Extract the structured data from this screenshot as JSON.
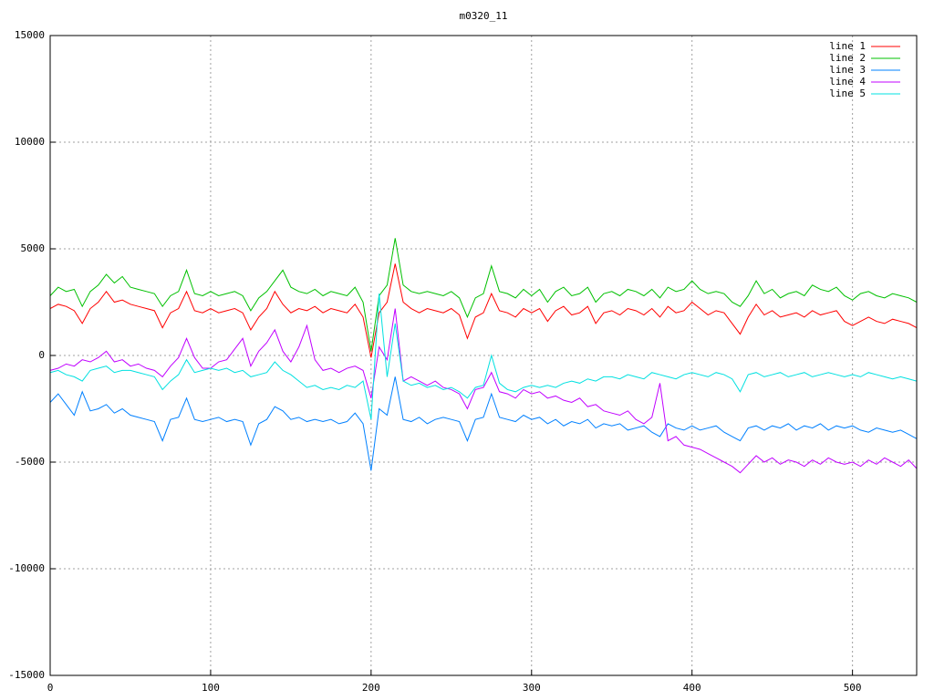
{
  "chart_data": {
    "type": "line",
    "title": "m0320_11",
    "x": [
      0,
      5,
      10,
      15,
      20,
      25,
      30,
      35,
      40,
      45,
      50,
      55,
      60,
      65,
      70,
      75,
      80,
      85,
      90,
      95,
      100,
      105,
      110,
      115,
      120,
      125,
      130,
      135,
      140,
      145,
      150,
      155,
      160,
      165,
      170,
      175,
      180,
      185,
      190,
      195,
      200,
      205,
      210,
      215,
      220,
      225,
      230,
      235,
      240,
      245,
      250,
      255,
      260,
      265,
      270,
      275,
      280,
      285,
      290,
      295,
      300,
      305,
      310,
      315,
      320,
      325,
      330,
      335,
      340,
      345,
      350,
      355,
      360,
      365,
      370,
      375,
      380,
      385,
      390,
      395,
      400,
      405,
      410,
      415,
      420,
      425,
      430,
      435,
      440,
      445,
      450,
      455,
      460,
      465,
      470,
      475,
      480,
      485,
      490,
      495,
      500,
      505,
      510,
      515,
      520,
      525,
      530,
      535,
      540
    ],
    "series": [
      {
        "name": "line 1",
        "color": "#ff0000",
        "values": [
          2200,
          2400,
          2300,
          2100,
          1500,
          2200,
          2500,
          3000,
          2500,
          2600,
          2400,
          2300,
          2200,
          2100,
          1300,
          2000,
          2200,
          3000,
          2100,
          2000,
          2200,
          2000,
          2100,
          2200,
          2000,
          1200,
          1800,
          2200,
          3000,
          2400,
          2000,
          2200,
          2100,
          2300,
          2000,
          2200,
          2100,
          2000,
          2400,
          1800,
          -100,
          2000,
          2500,
          4300,
          2500,
          2200,
          2000,
          2200,
          2100,
          2000,
          2200,
          1900,
          800,
          1800,
          2000,
          2900,
          2100,
          2000,
          1800,
          2200,
          2000,
          2200,
          1600,
          2100,
          2300,
          1900,
          2000,
          2300,
          1500,
          2000,
          2100,
          1900,
          2200,
          2100,
          1900,
          2200,
          1800,
          2300,
          2000,
          2100,
          2500,
          2200,
          1900,
          2100,
          2000,
          1500,
          1000,
          1800,
          2400,
          1900,
          2100,
          1800,
          1900,
          2000,
          1800,
          2100,
          1900,
          2000,
          2100,
          1600,
          1400,
          1600,
          1800,
          1600,
          1500,
          1700,
          1600,
          1500,
          1300
        ]
      },
      {
        "name": "line 2",
        "color": "#00c000",
        "values": [
          2800,
          3200,
          3000,
          3100,
          2300,
          3000,
          3300,
          3800,
          3400,
          3700,
          3200,
          3100,
          3000,
          2900,
          2300,
          2800,
          3000,
          4000,
          2900,
          2800,
          3000,
          2800,
          2900,
          3000,
          2800,
          2100,
          2700,
          3000,
          3500,
          4000,
          3200,
          3000,
          2900,
          3100,
          2800,
          3000,
          2900,
          2800,
          3200,
          2500,
          200,
          2800,
          3300,
          5500,
          3300,
          3000,
          2900,
          3000,
          2900,
          2800,
          3000,
          2700,
          1800,
          2700,
          2900,
          4200,
          3000,
          2900,
          2700,
          3100,
          2800,
          3100,
          2500,
          3000,
          3200,
          2800,
          2900,
          3200,
          2500,
          2900,
          3000,
          2800,
          3100,
          3000,
          2800,
          3100,
          2700,
          3200,
          3000,
          3100,
          3500,
          3100,
          2900,
          3000,
          2900,
          2500,
          2300,
          2800,
          3500,
          2900,
          3100,
          2700,
          2900,
          3000,
          2800,
          3300,
          3100,
          3000,
          3200,
          2800,
          2600,
          2900,
          3000,
          2800,
          2700,
          2900,
          2800,
          2700,
          2500
        ]
      },
      {
        "name": "line 3",
        "color": "#0080ff",
        "values": [
          -2200,
          -1800,
          -2300,
          -2800,
          -1700,
          -2600,
          -2500,
          -2300,
          -2700,
          -2500,
          -2800,
          -2900,
          -3000,
          -3100,
          -4000,
          -3000,
          -2900,
          -2000,
          -3000,
          -3100,
          -3000,
          -2900,
          -3100,
          -3000,
          -3100,
          -4200,
          -3200,
          -3000,
          -2400,
          -2600,
          -3000,
          -2900,
          -3100,
          -3000,
          -3100,
          -3000,
          -3200,
          -3100,
          -2700,
          -3200,
          -5400,
          -2500,
          -2800,
          -1000,
          -3000,
          -3100,
          -2900,
          -3200,
          -3000,
          -2900,
          -3000,
          -3100,
          -4000,
          -3000,
          -2900,
          -1800,
          -2900,
          -3000,
          -3100,
          -2800,
          -3000,
          -2900,
          -3200,
          -3000,
          -3300,
          -3100,
          -3200,
          -3000,
          -3400,
          -3200,
          -3300,
          -3200,
          -3500,
          -3400,
          -3300,
          -3600,
          -3800,
          -3200,
          -3400,
          -3500,
          -3300,
          -3500,
          -3400,
          -3300,
          -3600,
          -3800,
          -4000,
          -3400,
          -3300,
          -3500,
          -3300,
          -3400,
          -3200,
          -3500,
          -3300,
          -3400,
          -3200,
          -3500,
          -3300,
          -3400,
          -3300,
          -3500,
          -3600,
          -3400,
          -3500,
          -3600,
          -3500,
          -3700,
          -3900
        ]
      },
      {
        "name": "line 4",
        "color": "#c000ff",
        "values": [
          -700,
          -600,
          -400,
          -500,
          -200,
          -300,
          -100,
          200,
          -300,
          -200,
          -500,
          -400,
          -600,
          -700,
          -1000,
          -500,
          -100,
          800,
          -100,
          -600,
          -600,
          -300,
          -200,
          300,
          800,
          -500,
          200,
          600,
          1200,
          200,
          -300,
          400,
          1400,
          -200,
          -700,
          -600,
          -800,
          -600,
          -500,
          -700,
          -2000,
          400,
          -200,
          2200,
          -1200,
          -1000,
          -1200,
          -1400,
          -1200,
          -1500,
          -1600,
          -1800,
          -2500,
          -1600,
          -1500,
          -800,
          -1700,
          -1800,
          -2000,
          -1600,
          -1800,
          -1700,
          -2000,
          -1900,
          -2100,
          -2200,
          -2000,
          -2400,
          -2300,
          -2600,
          -2700,
          -2800,
          -2600,
          -3000,
          -3200,
          -2900,
          -1300,
          -4000,
          -3800,
          -4200,
          -4300,
          -4400,
          -4600,
          -4800,
          -5000,
          -5200,
          -5500,
          -5100,
          -4700,
          -5000,
          -4800,
          -5100,
          -4900,
          -5000,
          -5200,
          -4900,
          -5100,
          -4800,
          -5000,
          -5100,
          -5000,
          -5200,
          -4900,
          -5100,
          -4800,
          -5000,
          -5200,
          -4900,
          -5300
        ]
      },
      {
        "name": "line 5",
        "color": "#00e0e0",
        "values": [
          -800,
          -700,
          -900,
          -1000,
          -1200,
          -700,
          -600,
          -500,
          -800,
          -700,
          -700,
          -800,
          -900,
          -1000,
          -1600,
          -1200,
          -900,
          -200,
          -800,
          -700,
          -600,
          -700,
          -600,
          -800,
          -700,
          -1000,
          -900,
          -800,
          -300,
          -700,
          -900,
          -1200,
          -1500,
          -1400,
          -1600,
          -1500,
          -1600,
          -1400,
          -1500,
          -1200,
          -3000,
          2900,
          -1000,
          1500,
          -1200,
          -1400,
          -1300,
          -1500,
          -1400,
          -1600,
          -1500,
          -1700,
          -2000,
          -1500,
          -1400,
          0,
          -1300,
          -1600,
          -1700,
          -1500,
          -1400,
          -1500,
          -1400,
          -1500,
          -1300,
          -1200,
          -1300,
          -1100,
          -1200,
          -1000,
          -1000,
          -1100,
          -900,
          -1000,
          -1100,
          -800,
          -900,
          -1000,
          -1100,
          -900,
          -800,
          -900,
          -1000,
          -800,
          -900,
          -1100,
          -1700,
          -900,
          -800,
          -1000,
          -900,
          -800,
          -1000,
          -900,
          -800,
          -1000,
          -900,
          -800,
          -900,
          -1000,
          -900,
          -1000,
          -800,
          -900,
          -1000,
          -1100,
          -1000,
          -1100,
          -1200
        ]
      }
    ],
    "xlim": [
      0,
      540
    ],
    "xticks": [
      0,
      100,
      200,
      300,
      400,
      500
    ],
    "ylim": [
      -15000,
      15000
    ],
    "yticks": [
      -15000,
      -10000,
      -5000,
      0,
      5000,
      10000,
      15000
    ],
    "grid": true,
    "legend": "upper-right"
  }
}
